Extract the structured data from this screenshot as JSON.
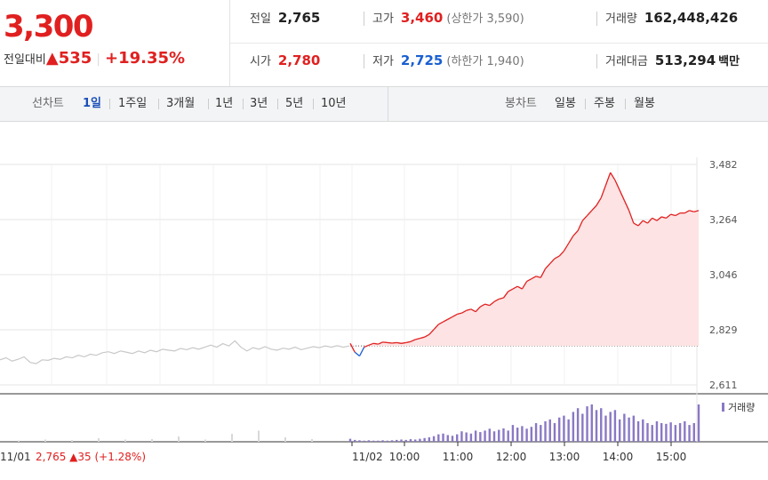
{
  "quote": {
    "price": "3,300",
    "change_label": "전일대비",
    "change_icon": "▲",
    "change": "535",
    "change_pct": "+19.35%"
  },
  "stats": {
    "prev_close": {
      "label": "전일",
      "value": "2,765"
    },
    "high": {
      "label": "고가",
      "value": "3,460",
      "limit": "(상한가 3,590)"
    },
    "volume": {
      "label": "거래량",
      "value": "162,448,426"
    },
    "open": {
      "label": "시가",
      "value": "2,780"
    },
    "low": {
      "label": "저가",
      "value": "2,725",
      "limit": "(하한가 1,940)"
    },
    "amount": {
      "label": "거래대금",
      "value": "513,294",
      "unit": "백만"
    }
  },
  "period_tabs": {
    "header": "선차트",
    "items": [
      "1일",
      "1주일",
      "3개월",
      "1년",
      "3년",
      "5년",
      "10년"
    ],
    "selected": "1일"
  },
  "candle_tabs": {
    "header": "봉차트",
    "items": [
      "일봉",
      "주봉",
      "월봉"
    ]
  },
  "colors": {
    "up": "#e02020",
    "down": "#1a5fd0",
    "prev_day": "#c8c8c8",
    "volume": "#8a78c4"
  },
  "chart_data": {
    "type": "line",
    "title": "",
    "y_ticks": [
      "3,482",
      "3,264",
      "3,046",
      "2,829",
      "2,611"
    ],
    "ylim": [
      2611,
      3482
    ],
    "base_price": 2765,
    "x_ticks": [
      "11/02",
      "10:00",
      "11:00",
      "12:00",
      "13:00",
      "14:00",
      "15:00"
    ],
    "prev_day": {
      "label": "11/01",
      "close": "2,765",
      "change": "▲35",
      "change_pct": "(+1.28%)",
      "values": [
        2710,
        2718,
        2705,
        2712,
        2722,
        2700,
        2695,
        2710,
        2708,
        2716,
        2712,
        2722,
        2718,
        2728,
        2722,
        2732,
        2728,
        2738,
        2742,
        2735,
        2745,
        2740,
        2735,
        2745,
        2738,
        2748,
        2742,
        2752,
        2748,
        2745,
        2755,
        2750,
        2758,
        2752,
        2760,
        2768,
        2760,
        2774,
        2765,
        2785,
        2760,
        2745,
        2758,
        2752,
        2762,
        2752,
        2748,
        2756,
        2752,
        2760,
        2750,
        2756,
        2762,
        2758,
        2765,
        2760,
        2766,
        2760,
        2765
      ]
    },
    "today": {
      "times": [
        "09:00",
        "09:05",
        "09:10",
        "09:15",
        "09:20",
        "09:25",
        "09:30",
        "09:35",
        "09:40",
        "09:45",
        "09:50",
        "09:55",
        "10:00",
        "10:05",
        "10:10",
        "10:15",
        "10:20",
        "10:25",
        "10:30",
        "10:35",
        "10:40",
        "10:45",
        "10:50",
        "10:55",
        "11:00",
        "11:05",
        "11:10",
        "11:15",
        "11:20",
        "11:25",
        "11:30",
        "11:35",
        "11:40",
        "11:45",
        "11:50",
        "11:55",
        "12:00",
        "12:05",
        "12:10",
        "12:15",
        "12:20",
        "12:25",
        "12:30",
        "12:35",
        "12:40",
        "12:45",
        "12:50",
        "12:55",
        "13:00",
        "13:05",
        "13:10",
        "13:15",
        "13:20",
        "13:25",
        "13:30",
        "13:35",
        "13:40",
        "13:45",
        "13:50",
        "13:55",
        "14:00",
        "14:05",
        "14:10",
        "14:15",
        "14:20",
        "14:25",
        "14:30",
        "14:35",
        "14:40",
        "14:45",
        "14:50",
        "14:55",
        "15:00",
        "15:05",
        "15:10",
        "15:15"
      ],
      "values": [
        2775,
        2740,
        2725,
        2760,
        2768,
        2775,
        2772,
        2780,
        2778,
        2776,
        2778,
        2775,
        2778,
        2782,
        2790,
        2795,
        2800,
        2810,
        2830,
        2850,
        2860,
        2870,
        2880,
        2890,
        2895,
        2905,
        2910,
        2900,
        2920,
        2930,
        2925,
        2940,
        2950,
        2955,
        2980,
        2990,
        3000,
        2990,
        3020,
        3030,
        3040,
        3035,
        3070,
        3090,
        3110,
        3120,
        3140,
        3170,
        3200,
        3220,
        3260,
        3280,
        3300,
        3320,
        3350,
        3400,
        3450,
        3420,
        3380,
        3340,
        3300,
        3250,
        3240,
        3260,
        3250,
        3270,
        3260,
        3275,
        3270,
        3285,
        3280,
        3290,
        3290,
        3300,
        3295,
        3300
      ],
      "volume": [
        0.08,
        0.05,
        0.04,
        0.03,
        0.04,
        0.03,
        0.03,
        0.04,
        0.03,
        0.04,
        0.05,
        0.06,
        0.05,
        0.07,
        0.06,
        0.08,
        0.1,
        0.12,
        0.15,
        0.2,
        0.22,
        0.18,
        0.16,
        0.2,
        0.28,
        0.25,
        0.22,
        0.3,
        0.26,
        0.3,
        0.35,
        0.28,
        0.32,
        0.36,
        0.3,
        0.45,
        0.38,
        0.42,
        0.35,
        0.4,
        0.5,
        0.45,
        0.55,
        0.6,
        0.5,
        0.65,
        0.7,
        0.6,
        0.8,
        0.9,
        0.75,
        0.95,
        1.0,
        0.85,
        0.9,
        0.7,
        0.8,
        0.85,
        0.6,
        0.75,
        0.65,
        0.7,
        0.55,
        0.6,
        0.5,
        0.45,
        0.55,
        0.5,
        0.48,
        0.52,
        0.45,
        0.5,
        0.55,
        0.45,
        0.5,
        1.0
      ]
    },
    "volume_legend": "거래량"
  }
}
